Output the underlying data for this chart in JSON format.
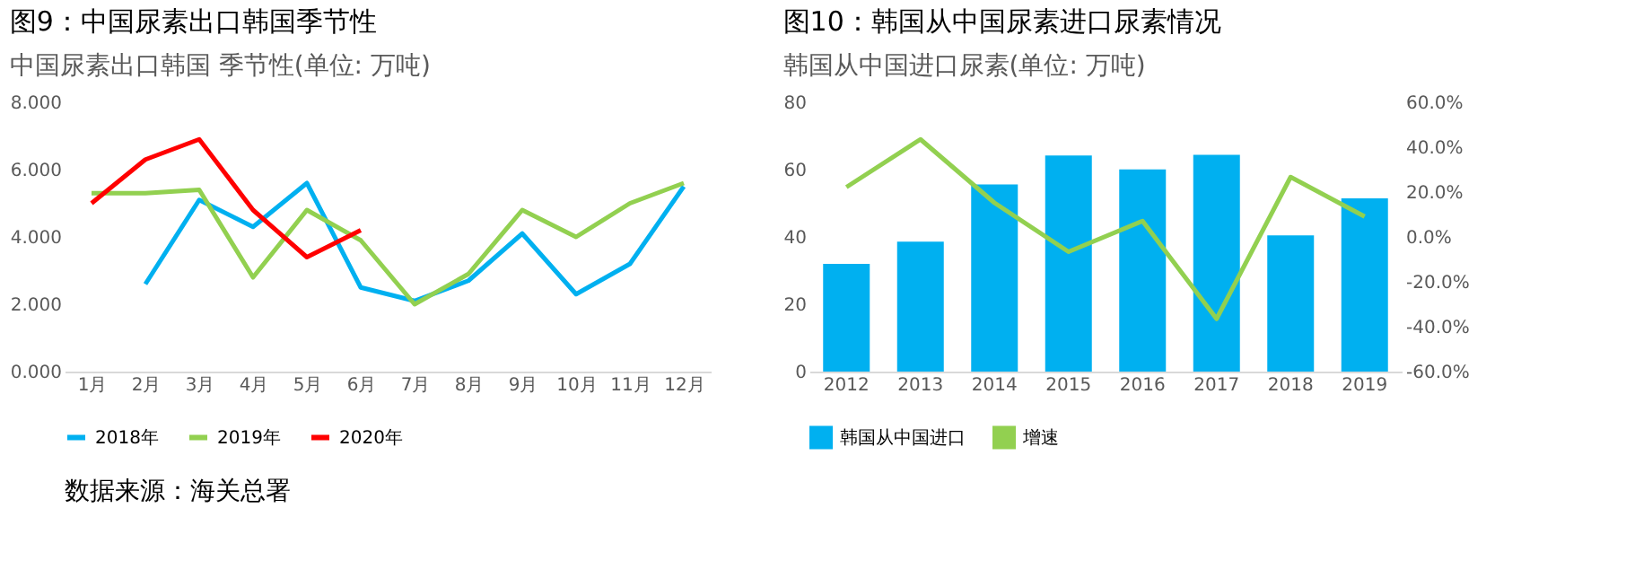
{
  "chart_data": [
    {
      "type": "line",
      "title": "图9：中国尿素出口韩国季节性",
      "subtitle": "中国尿素出口韩国 季节性(单位: 万吨)",
      "categories": [
        "1月",
        "2月",
        "3月",
        "4月",
        "5月",
        "6月",
        "7月",
        "8月",
        "9月",
        "10月",
        "11月",
        "12月"
      ],
      "series": [
        {
          "name": "2018年",
          "color": "#00b0f0",
          "values": [
            null,
            2.6,
            5.1,
            4.3,
            5.6,
            2.5,
            2.1,
            2.7,
            4.1,
            2.3,
            3.2,
            5.5
          ]
        },
        {
          "name": "2019年",
          "color": "#92d050",
          "values": [
            5.3,
            5.3,
            5.4,
            2.8,
            4.8,
            3.9,
            2.0,
            2.9,
            4.8,
            4.0,
            5.0,
            5.6
          ]
        },
        {
          "name": "2020年",
          "color": "#ff0000",
          "values": [
            5.0,
            6.3,
            6.9,
            4.8,
            3.4,
            4.2,
            null,
            null,
            null,
            null,
            null,
            null
          ]
        }
      ],
      "ylim": [
        0,
        8
      ],
      "yticks": [
        {
          "value": 0,
          "label": "0.000"
        },
        {
          "value": 2,
          "label": "2.000"
        },
        {
          "value": 4,
          "label": "4.000"
        },
        {
          "value": 6,
          "label": "6.000"
        },
        {
          "value": 8,
          "label": "8.000"
        }
      ],
      "grid": false,
      "legend": "bottom",
      "annotations": [
        "数据来源：海关总署"
      ]
    },
    {
      "type": "bar",
      "title": "图10：韩国从中国尿素进口尿素情况",
      "subtitle": "韩国从中国进口尿素(单位: 万吨)",
      "categories": [
        "2012",
        "2013",
        "2014",
        "2015",
        "2016",
        "2017",
        "2018",
        "2019"
      ],
      "series": [
        {
          "name": "韩国从中国进口",
          "color": "#00b0f0",
          "values": [
            32,
            38.6,
            55.6,
            64.2,
            60.1,
            64.4,
            40.5,
            51.5
          ]
        },
        {
          "name": "增速",
          "type": "line",
          "axis": "y2",
          "color": "#92d050",
          "values": [
            22.2,
            43.5,
            15.2,
            -6.6,
            7.1,
            -36.5,
            26.7,
            9.1
          ]
        }
      ],
      "ylim": [
        0,
        80
      ],
      "yticks": [
        0,
        20,
        40,
        60,
        80
      ],
      "y2lim": [
        -60,
        60
      ],
      "y2ticks": [
        {
          "value": -60,
          "label": "-60.0%"
        },
        {
          "value": -40,
          "label": "-40.0%"
        },
        {
          "value": -20,
          "label": "-20.0%"
        },
        {
          "value": 0,
          "label": "0.0%"
        },
        {
          "value": 20,
          "label": "20.0%"
        },
        {
          "value": 40,
          "label": "40.0%"
        },
        {
          "value": 60,
          "label": "60.0%"
        }
      ],
      "grid": false,
      "legend": "bottom"
    }
  ]
}
